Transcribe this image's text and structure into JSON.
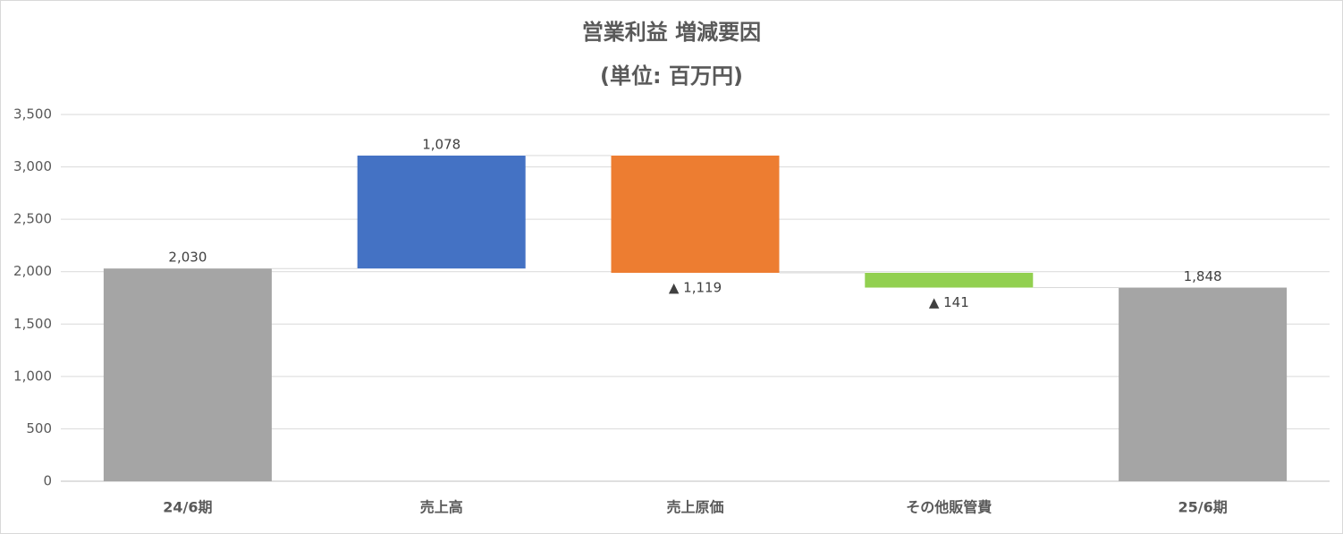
{
  "chart_data": {
    "type": "waterfall",
    "title": "営業利益 増減要因",
    "subtitle": "(単位: 百万円)",
    "categories": [
      "24/6期",
      "売上高",
      "売上原価",
      "その他販管費",
      "25/6期"
    ],
    "values": [
      2030,
      1078,
      -1119,
      -141,
      1848
    ],
    "value_labels": [
      "2,030",
      "1,078",
      "▲ 1,119",
      "▲ 141",
      "1,848"
    ],
    "measure": [
      "total",
      "relative",
      "relative",
      "relative",
      "total"
    ],
    "colors": [
      "#a5a5a5",
      "#4472c4",
      "#ed7d31",
      "#92d050",
      "#a5a5a5"
    ],
    "ylim": [
      0,
      3500
    ],
    "yticks": [
      0,
      500,
      {
        "value": 1000,
        "label": "1,000"
      },
      {
        "value": 1500,
        "label": "1,500"
      },
      {
        "value": 2000,
        "label": "2,000"
      },
      {
        "value": 2500,
        "label": "2,500"
      },
      {
        "value": 3000,
        "label": "3,000"
      },
      {
        "value": 3500,
        "label": "3,500"
      }
    ],
    "grid": true
  }
}
